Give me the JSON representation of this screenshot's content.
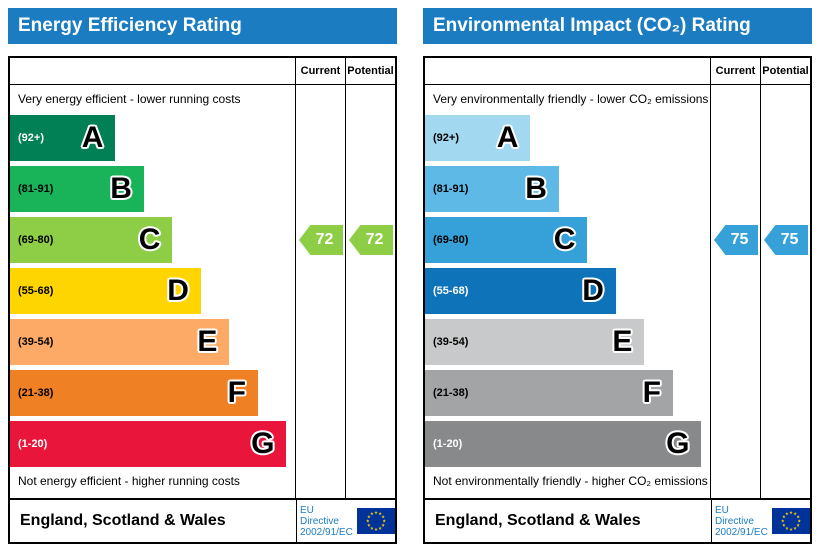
{
  "colors": {
    "header_bar": "#1b7cc2",
    "eu_flag_blue": "#003399",
    "eu_flag_stars": "#ffcc00",
    "border": "#000000",
    "energy_arrow": "#8dce46",
    "co2_arrow": "#35a1d8"
  },
  "charts": [
    {
      "id": "energy-efficiency",
      "title": "Energy Efficiency Rating",
      "columns": {
        "current": "Current",
        "potential": "Potential"
      },
      "top_caption": "Very energy efficient - lower running costs",
      "bottom_caption": "Not energy efficient - higher running costs",
      "bands": [
        {
          "letter": "A",
          "range": "(92+)",
          "color": "#008054",
          "width_pct": 37,
          "label_color": "#ffffff"
        },
        {
          "letter": "B",
          "range": "(81-91)",
          "color": "#19b459",
          "width_pct": 47,
          "label_color": "#000000"
        },
        {
          "letter": "C",
          "range": "(69-80)",
          "color": "#8dce46",
          "width_pct": 57,
          "label_color": "#000000"
        },
        {
          "letter": "D",
          "range": "(55-68)",
          "color": "#ffd500",
          "width_pct": 67,
          "label_color": "#000000"
        },
        {
          "letter": "E",
          "range": "(39-54)",
          "color": "#fcaa65",
          "width_pct": 77,
          "label_color": "#000000"
        },
        {
          "letter": "F",
          "range": "(21-38)",
          "color": "#ef8023",
          "width_pct": 87,
          "label_color": "#000000"
        },
        {
          "letter": "G",
          "range": "(1-20)",
          "color": "#e9153b",
          "width_pct": 97,
          "label_color": "#ffffff"
        }
      ],
      "current": {
        "value": "72",
        "color": "#8dce46",
        "band_index": 2
      },
      "potential": {
        "value": "72",
        "color": "#8dce46",
        "band_index": 2
      },
      "footer": {
        "region": "England, Scotland & Wales",
        "directive_line1": "EU Directive",
        "directive_line2": "2002/91/EC"
      }
    },
    {
      "id": "environmental-impact",
      "title": "Environmental Impact (CO₂) Rating",
      "columns": {
        "current": "Current",
        "potential": "Potential"
      },
      "top_caption": "Very environmentally friendly - lower CO₂ emissions",
      "bottom_caption": "Not environmentally friendly - higher CO₂ emissions",
      "bands": [
        {
          "letter": "A",
          "range": "(92+)",
          "color": "#a2d9f0",
          "width_pct": 37,
          "label_color": "#000000"
        },
        {
          "letter": "B",
          "range": "(81-91)",
          "color": "#5fb9e6",
          "width_pct": 47,
          "label_color": "#000000"
        },
        {
          "letter": "C",
          "range": "(69-80)",
          "color": "#35a1d8",
          "width_pct": 57,
          "label_color": "#000000"
        },
        {
          "letter": "D",
          "range": "(55-68)",
          "color": "#0e73b9",
          "width_pct": 67,
          "label_color": "#ffffff"
        },
        {
          "letter": "E",
          "range": "(39-54)",
          "color": "#c8c9ca",
          "width_pct": 77,
          "label_color": "#000000"
        },
        {
          "letter": "F",
          "range": "(21-38)",
          "color": "#a2a4a6",
          "width_pct": 87,
          "label_color": "#000000"
        },
        {
          "letter": "G",
          "range": "(1-20)",
          "color": "#87898b",
          "width_pct": 97,
          "label_color": "#ffffff"
        }
      ],
      "current": {
        "value": "75",
        "color": "#35a1d8",
        "band_index": 2
      },
      "potential": {
        "value": "75",
        "color": "#35a1d8",
        "band_index": 2
      },
      "footer": {
        "region": "England, Scotland & Wales",
        "directive_line1": "EU Directive",
        "directive_line2": "2002/91/EC"
      }
    }
  ],
  "chart_data": [
    {
      "type": "bar",
      "title": "Energy Efficiency Rating",
      "categories": [
        "A (92+)",
        "B (81-91)",
        "C (69-80)",
        "D (55-68)",
        "E (39-54)",
        "F (21-38)",
        "G (1-20)"
      ],
      "band_bar_lengths_pct": [
        37,
        47,
        57,
        67,
        77,
        87,
        97
      ],
      "series": [
        {
          "name": "Current",
          "value": 72,
          "band": "C"
        },
        {
          "name": "Potential",
          "value": 72,
          "band": "C"
        }
      ],
      "top_note": "Very energy efficient - lower running costs",
      "bottom_note": "Not energy efficient - higher running costs",
      "footer": "England, Scotland & Wales — EU Directive 2002/91/EC"
    },
    {
      "type": "bar",
      "title": "Environmental Impact (CO₂) Rating",
      "categories": [
        "A (92+)",
        "B (81-91)",
        "C (69-80)",
        "D (55-68)",
        "E (39-54)",
        "F (21-38)",
        "G (1-20)"
      ],
      "band_bar_lengths_pct": [
        37,
        47,
        57,
        67,
        77,
        87,
        97
      ],
      "series": [
        {
          "name": "Current",
          "value": 75,
          "band": "C"
        },
        {
          "name": "Potential",
          "value": 75,
          "band": "C"
        }
      ],
      "top_note": "Very environmentally friendly - lower CO₂ emissions",
      "bottom_note": "Not environmentally friendly - higher CO₂ emissions",
      "footer": "England, Scotland & Wales — EU Directive 2002/91/EC"
    }
  ]
}
